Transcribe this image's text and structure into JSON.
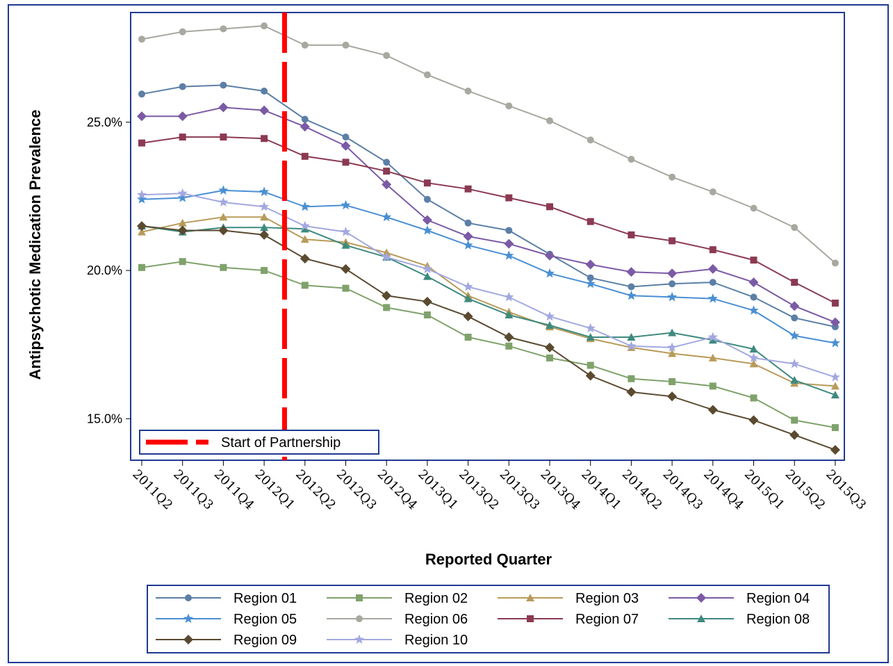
{
  "chart_data": {
    "type": "line",
    "xlabel": "Reported Quarter",
    "ylabel": "Antipsychotic Medication Prevalence",
    "ylim": [
      13.6,
      28.7
    ],
    "yticks": [
      "15.0%",
      "20.0%",
      "25.0%"
    ],
    "ytick_values": [
      15,
      20,
      25
    ],
    "categories": [
      "2011Q2",
      "2011Q3",
      "2011Q4",
      "2012Q1",
      "2012Q2",
      "2012Q3",
      "2012Q4",
      "2013Q1",
      "2013Q2",
      "2013Q3",
      "2013Q4",
      "2014Q1",
      "2014Q2",
      "2014Q3",
      "2014Q4",
      "2015Q1",
      "2015Q2",
      "2015Q3"
    ],
    "reference_line": {
      "label": "Start of Partnership",
      "between": [
        "2012Q1",
        "2012Q2"
      ],
      "color": "#ff0000"
    },
    "legend_position": "bottom",
    "series": [
      {
        "name": "Region 01",
        "color": "#5b7fa6",
        "marker": "circle",
        "values": [
          25.95,
          26.2,
          26.25,
          26.05,
          25.1,
          24.5,
          23.65,
          22.4,
          21.6,
          21.35,
          20.55,
          19.75,
          19.45,
          19.55,
          19.6,
          19.1,
          18.4,
          18.1
        ]
      },
      {
        "name": "Region 02",
        "color": "#7fa26b",
        "marker": "square",
        "values": [
          20.1,
          20.3,
          20.1,
          20.0,
          19.5,
          19.4,
          18.75,
          18.5,
          17.75,
          17.45,
          17.05,
          16.8,
          16.35,
          16.25,
          16.1,
          15.7,
          14.95,
          14.7
        ]
      },
      {
        "name": "Region 03",
        "color": "#b89b5a",
        "marker": "triangle",
        "values": [
          21.3,
          21.6,
          21.8,
          21.8,
          21.05,
          20.95,
          20.6,
          20.15,
          19.15,
          18.6,
          18.1,
          17.7,
          17.4,
          17.2,
          17.05,
          16.85,
          16.2,
          16.1
        ]
      },
      {
        "name": "Region 04",
        "color": "#7b5aa6",
        "marker": "diamond",
        "values": [
          25.2,
          25.2,
          25.5,
          25.4,
          24.85,
          24.2,
          22.9,
          21.7,
          21.15,
          20.9,
          20.5,
          20.2,
          19.95,
          19.9,
          20.05,
          19.6,
          18.8,
          18.25
        ]
      },
      {
        "name": "Region 05",
        "color": "#4a8fd4",
        "marker": "star",
        "values": [
          22.4,
          22.45,
          22.7,
          22.65,
          22.15,
          22.2,
          21.8,
          21.35,
          20.85,
          20.5,
          19.9,
          19.55,
          19.15,
          19.1,
          19.05,
          18.65,
          17.8,
          17.55
        ]
      },
      {
        "name": "Region 06",
        "color": "#a8a8a0",
        "marker": "circle",
        "values": [
          27.8,
          28.05,
          28.15,
          28.25,
          27.6,
          27.6,
          27.25,
          26.6,
          26.05,
          25.55,
          25.05,
          24.4,
          23.75,
          23.15,
          22.65,
          22.1,
          21.45,
          20.25
        ]
      },
      {
        "name": "Region 07",
        "color": "#8b3a52",
        "marker": "square",
        "values": [
          24.3,
          24.5,
          24.5,
          24.45,
          23.85,
          23.65,
          23.35,
          22.95,
          22.75,
          22.45,
          22.15,
          21.65,
          21.2,
          21.0,
          20.7,
          20.35,
          19.6,
          18.9
        ]
      },
      {
        "name": "Region 08",
        "color": "#3e8a7f",
        "marker": "triangle",
        "values": [
          21.5,
          21.3,
          21.45,
          21.45,
          21.4,
          20.85,
          20.45,
          19.8,
          19.05,
          18.5,
          18.15,
          17.75,
          17.75,
          17.9,
          17.65,
          17.35,
          16.3,
          15.8
        ]
      },
      {
        "name": "Region 09",
        "color": "#5a4a30",
        "marker": "diamond",
        "values": [
          21.5,
          21.35,
          21.35,
          21.2,
          20.4,
          20.05,
          19.15,
          18.95,
          18.45,
          17.75,
          17.4,
          16.45,
          15.9,
          15.75,
          15.3,
          14.95,
          14.45,
          13.95
        ]
      },
      {
        "name": "Region 10",
        "color": "#a3a8e0",
        "marker": "star",
        "values": [
          22.55,
          22.6,
          22.3,
          22.15,
          21.5,
          21.3,
          20.45,
          20.05,
          19.45,
          19.1,
          18.45,
          18.05,
          17.45,
          17.4,
          17.75,
          17.05,
          16.85,
          16.4
        ]
      }
    ]
  }
}
